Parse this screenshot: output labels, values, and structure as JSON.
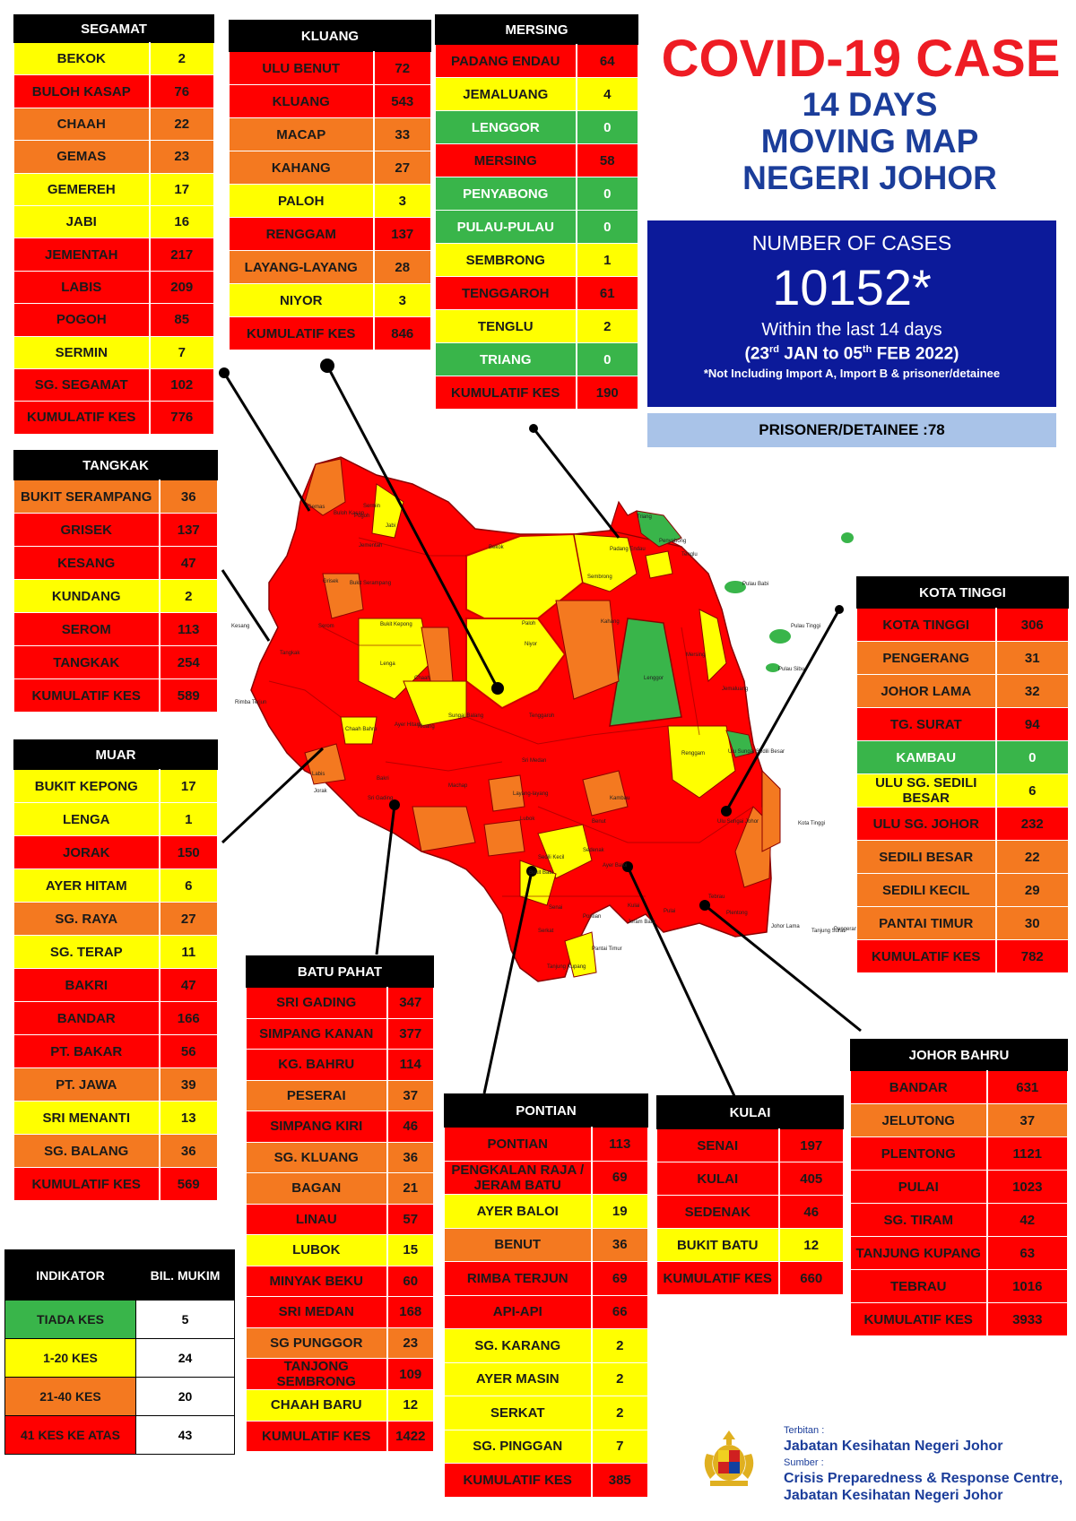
{
  "title": {
    "line1": "COVID-19 CASE",
    "line2": "14 DAYS",
    "line3": "MOVING MAP",
    "line4": "NEGERI JOHOR"
  },
  "summary": {
    "label": "NUMBER OF CASES",
    "total": "10152*",
    "within": "Within the last 14 days",
    "period_open": "(23",
    "period_sup1": "rd",
    "period_mid": " JAN to 05",
    "period_sup2": "th",
    "period_close": " FEB 2022)",
    "note": "*Not Including Import A, Import B & prisoner/detainee",
    "prisoner": "PRISONER/DETAINEE :78"
  },
  "colors": {
    "red": "#ff0000",
    "orange": "#f47920",
    "yellow": "#ffff00",
    "green": "#39b54a",
    "navy": "#0c1a9a",
    "light_blue": "#a9c3e8"
  },
  "districts": {
    "segamat": {
      "name": "SEGAMAT",
      "rows": [
        {
          "label": "BEKOK",
          "value": "2",
          "level": "yellow"
        },
        {
          "label": "BULOH KASAP",
          "value": "76",
          "level": "red"
        },
        {
          "label": "CHAAH",
          "value": "22",
          "level": "orange"
        },
        {
          "label": "GEMAS",
          "value": "23",
          "level": "orange"
        },
        {
          "label": "GEMEREH",
          "value": "17",
          "level": "yellow"
        },
        {
          "label": "JABI",
          "value": "16",
          "level": "yellow"
        },
        {
          "label": "JEMENTAH",
          "value": "217",
          "level": "red"
        },
        {
          "label": "LABIS",
          "value": "209",
          "level": "red"
        },
        {
          "label": "POGOH",
          "value": "85",
          "level": "red"
        },
        {
          "label": "SERMIN",
          "value": "7",
          "level": "yellow"
        },
        {
          "label": "SG. SEGAMAT",
          "value": "102",
          "level": "red"
        }
      ],
      "total_label": "KUMULATIF KES",
      "total": "776"
    },
    "kluang": {
      "name": "KLUANG",
      "rows": [
        {
          "label": "ULU BENUT",
          "value": "72",
          "level": "red"
        },
        {
          "label": "KLUANG",
          "value": "543",
          "level": "red"
        },
        {
          "label": "MACAP",
          "value": "33",
          "level": "orange"
        },
        {
          "label": "KAHANG",
          "value": "27",
          "level": "orange"
        },
        {
          "label": "PALOH",
          "value": "3",
          "level": "yellow"
        },
        {
          "label": "RENGGAM",
          "value": "137",
          "level": "red"
        },
        {
          "label": "LAYANG-LAYANG",
          "value": "28",
          "level": "orange"
        },
        {
          "label": "NIYOR",
          "value": "3",
          "level": "yellow"
        }
      ],
      "total_label": "KUMULATIF KES",
      "total": "846"
    },
    "mersing": {
      "name": "MERSING",
      "rows": [
        {
          "label": "PADANG ENDAU",
          "value": "64",
          "level": "red"
        },
        {
          "label": "JEMALUANG",
          "value": "4",
          "level": "yellow"
        },
        {
          "label": "LENGGOR",
          "value": "0",
          "level": "green"
        },
        {
          "label": "MERSING",
          "value": "58",
          "level": "red"
        },
        {
          "label": "PENYABONG",
          "value": "0",
          "level": "green"
        },
        {
          "label": "PULAU-PULAU",
          "value": "0",
          "level": "green"
        },
        {
          "label": "SEMBRONG",
          "value": "1",
          "level": "yellow"
        },
        {
          "label": "TENGGAROH",
          "value": "61",
          "level": "red"
        },
        {
          "label": "TENGLU",
          "value": "2",
          "level": "yellow"
        },
        {
          "label": "TRIANG",
          "value": "0",
          "level": "green"
        }
      ],
      "total_label": "KUMULATIF KES",
      "total": "190"
    },
    "tangkak": {
      "name": "TANGKAK",
      "rows": [
        {
          "label": "BUKIT SERAMPANG",
          "value": "36",
          "level": "orange"
        },
        {
          "label": "GRISEK",
          "value": "137",
          "level": "red"
        },
        {
          "label": "KESANG",
          "value": "47",
          "level": "red"
        },
        {
          "label": "KUNDANG",
          "value": "2",
          "level": "yellow"
        },
        {
          "label": "SEROM",
          "value": "113",
          "level": "red"
        },
        {
          "label": "TANGKAK",
          "value": "254",
          "level": "red"
        }
      ],
      "total_label": "KUMULATIF KES",
      "total": "589"
    },
    "muar": {
      "name": "MUAR",
      "rows": [
        {
          "label": "BUKIT KEPONG",
          "value": "17",
          "level": "yellow"
        },
        {
          "label": "LENGA",
          "value": "1",
          "level": "yellow"
        },
        {
          "label": "JORAK",
          "value": "150",
          "level": "red"
        },
        {
          "label": "AYER HITAM",
          "value": "6",
          "level": "yellow"
        },
        {
          "label": "SG. RAYA",
          "value": "27",
          "level": "orange"
        },
        {
          "label": "SG. TERAP",
          "value": "11",
          "level": "yellow"
        },
        {
          "label": "BAKRI",
          "value": "47",
          "level": "red"
        },
        {
          "label": "BANDAR",
          "value": "166",
          "level": "red"
        },
        {
          "label": "PT. BAKAR",
          "value": "56",
          "level": "red"
        },
        {
          "label": "PT. JAWA",
          "value": "39",
          "level": "orange"
        },
        {
          "label": "SRI MENANTI",
          "value": "13",
          "level": "yellow"
        },
        {
          "label": "SG. BALANG",
          "value": "36",
          "level": "orange"
        }
      ],
      "total_label": "KUMULATIF KES",
      "total": "569"
    },
    "kota_tinggi": {
      "name": "KOTA TINGGI",
      "rows": [
        {
          "label": "KOTA TINGGI",
          "value": "306",
          "level": "red"
        },
        {
          "label": "PENGERANG",
          "value": "31",
          "level": "orange"
        },
        {
          "label": "JOHOR LAMA",
          "value": "32",
          "level": "orange"
        },
        {
          "label": "TG. SURAT",
          "value": "94",
          "level": "red"
        },
        {
          "label": "KAMBAU",
          "value": "0",
          "level": "green"
        },
        {
          "label": "ULU SG. SEDILI BESAR",
          "value": "6",
          "level": "yellow"
        },
        {
          "label": "ULU  SG. JOHOR",
          "value": "232",
          "level": "red"
        },
        {
          "label": "SEDILI BESAR",
          "value": "22",
          "level": "orange"
        },
        {
          "label": "SEDILI KECIL",
          "value": "29",
          "level": "orange"
        },
        {
          "label": "PANTAI TIMUR",
          "value": "30",
          "level": "orange"
        }
      ],
      "total_label": "KUMULATIF KES",
      "total": "782"
    },
    "batu_pahat": {
      "name": "BATU PAHAT",
      "rows": [
        {
          "label": "SRI GADING",
          "value": "347",
          "level": "red"
        },
        {
          "label": "SIMPANG KANAN",
          "value": "377",
          "level": "red"
        },
        {
          "label": "KG. BAHRU",
          "value": "114",
          "level": "red"
        },
        {
          "label": "PESERAI",
          "value": "37",
          "level": "orange"
        },
        {
          "label": "SIMPANG KIRI",
          "value": "46",
          "level": "red"
        },
        {
          "label": "SG. KLUANG",
          "value": "36",
          "level": "orange"
        },
        {
          "label": "BAGAN",
          "value": "21",
          "level": "orange"
        },
        {
          "label": "LINAU",
          "value": "57",
          "level": "red"
        },
        {
          "label": "LUBOK",
          "value": "15",
          "level": "yellow"
        },
        {
          "label": "MINYAK BEKU",
          "value": "60",
          "level": "red"
        },
        {
          "label": "SRI MEDAN",
          "value": "168",
          "level": "red"
        },
        {
          "label": "SG PUNGGOR",
          "value": "23",
          "level": "orange"
        },
        {
          "label": "TANJONG SEMBRONG",
          "value": "109",
          "level": "red"
        },
        {
          "label": "CHAAH BARU",
          "value": "12",
          "level": "yellow"
        }
      ],
      "total_label": "KUMULATIF KES",
      "total": "1422"
    },
    "pontian": {
      "name": "PONTIAN",
      "rows": [
        {
          "label": "PONTIAN",
          "value": "113",
          "level": "red"
        },
        {
          "label": "PENGKALAN RAJA / JERAM BATU",
          "value": "69",
          "level": "red"
        },
        {
          "label": "AYER BALOI",
          "value": "19",
          "level": "yellow"
        },
        {
          "label": "BENUT",
          "value": "36",
          "level": "orange"
        },
        {
          "label": "RIMBA TERJUN",
          "value": "69",
          "level": "red"
        },
        {
          "label": "API-API",
          "value": "66",
          "level": "red"
        },
        {
          "label": "SG. KARANG",
          "value": "2",
          "level": "yellow"
        },
        {
          "label": "AYER MASIN",
          "value": "2",
          "level": "yellow"
        },
        {
          "label": "SERKAT",
          "value": "2",
          "level": "yellow"
        },
        {
          "label": "SG. PINGGAN",
          "value": "7",
          "level": "yellow"
        }
      ],
      "total_label": "KUMULATIF KES",
      "total": "385"
    },
    "kulai": {
      "name": "KULAI",
      "rows": [
        {
          "label": "SENAI",
          "value": "197",
          "level": "red"
        },
        {
          "label": "KULAI",
          "value": "405",
          "level": "red"
        },
        {
          "label": "SEDENAK",
          "value": "46",
          "level": "red"
        },
        {
          "label": "BUKIT BATU",
          "value": "12",
          "level": "yellow"
        }
      ],
      "total_label": "KUMULATIF KES",
      "total": "660"
    },
    "johor_bahru": {
      "name": "JOHOR BAHRU",
      "rows": [
        {
          "label": "BANDAR",
          "value": "631",
          "level": "red"
        },
        {
          "label": "JELUTONG",
          "value": "37",
          "level": "orange"
        },
        {
          "label": "PLENTONG",
          "value": "1121",
          "level": "red"
        },
        {
          "label": "PULAI",
          "value": "1023",
          "level": "red"
        },
        {
          "label": "SG. TIRAM",
          "value": "42",
          "level": "red"
        },
        {
          "label": "TANJUNG KUPANG",
          "value": "63",
          "level": "red"
        },
        {
          "label": "TEBRAU",
          "value": "1016",
          "level": "red"
        }
      ],
      "total_label": "KUMULATIF KES",
      "total": "3933"
    }
  },
  "legend": {
    "header_indicator": "INDIKATOR",
    "header_count": "BIL. MUKIM",
    "rows": [
      {
        "label": "TIADA KES",
        "value": "5",
        "level": "green"
      },
      {
        "label": "1-20 KES",
        "value": "24",
        "level": "yellow"
      },
      {
        "label": "21-40 KES",
        "value": "20",
        "level": "orange"
      },
      {
        "label": "41 KES KE ATAS",
        "value": "43",
        "level": "red"
      }
    ]
  },
  "map_labels": [
    "Gemas",
    "Buloh Kasap",
    "Sermin",
    "Jabi",
    "Bekok",
    "Padang Endau",
    "Triang",
    "Penyabong",
    "Tenglu",
    "Sembrong",
    "Pulau Babi",
    "Pulau Tinggi",
    "Pulau Sibu",
    "Bukit Serampang",
    "Bukit Kepong",
    "Lenga",
    "Chaah",
    "Paloh",
    "Niyor",
    "Kahang",
    "Mersing",
    "Lenggor",
    "Jemaluang",
    "Tenggaroh",
    "Kluang",
    "Chaah Bahru",
    "Ayer Hitam",
    "Sri Medan",
    "Renggam",
    "Ulu Sungai Sedili Besar",
    "Kambau",
    "Layang-layang",
    "Machap",
    "Sri Gading",
    "Lubok",
    "Benut",
    "Ulu Sungai Johor",
    "Kota Tinggi",
    "Sedili Kecil",
    "Sedenak",
    "Bukit Batu",
    "Ayer Baloi",
    "Kulai",
    "Senai",
    "Pontian",
    "Jeram Batu",
    "Pulai",
    "Tebrau",
    "Plentong",
    "Johor Lama",
    "Tanjung Surat",
    "Pengerang",
    "Pantai Timur",
    "Tanjung Kupang",
    "Serkat",
    "Rimba Terjun",
    "Kesang",
    "Tangkak",
    "Serom",
    "Grisek",
    "Jementah",
    "Pogoh",
    "Labis",
    "Bakri",
    "Jorak",
    "Sungai Balang"
  ],
  "footer": {
    "published_label": "Terbitan :",
    "published": "Jabatan Kesihatan Negeri Johor",
    "source_label": "Sumber :",
    "source1": "Crisis Preparedness & Response Centre,",
    "source2": "Jabatan Kesihatan Negeri Johor"
  }
}
